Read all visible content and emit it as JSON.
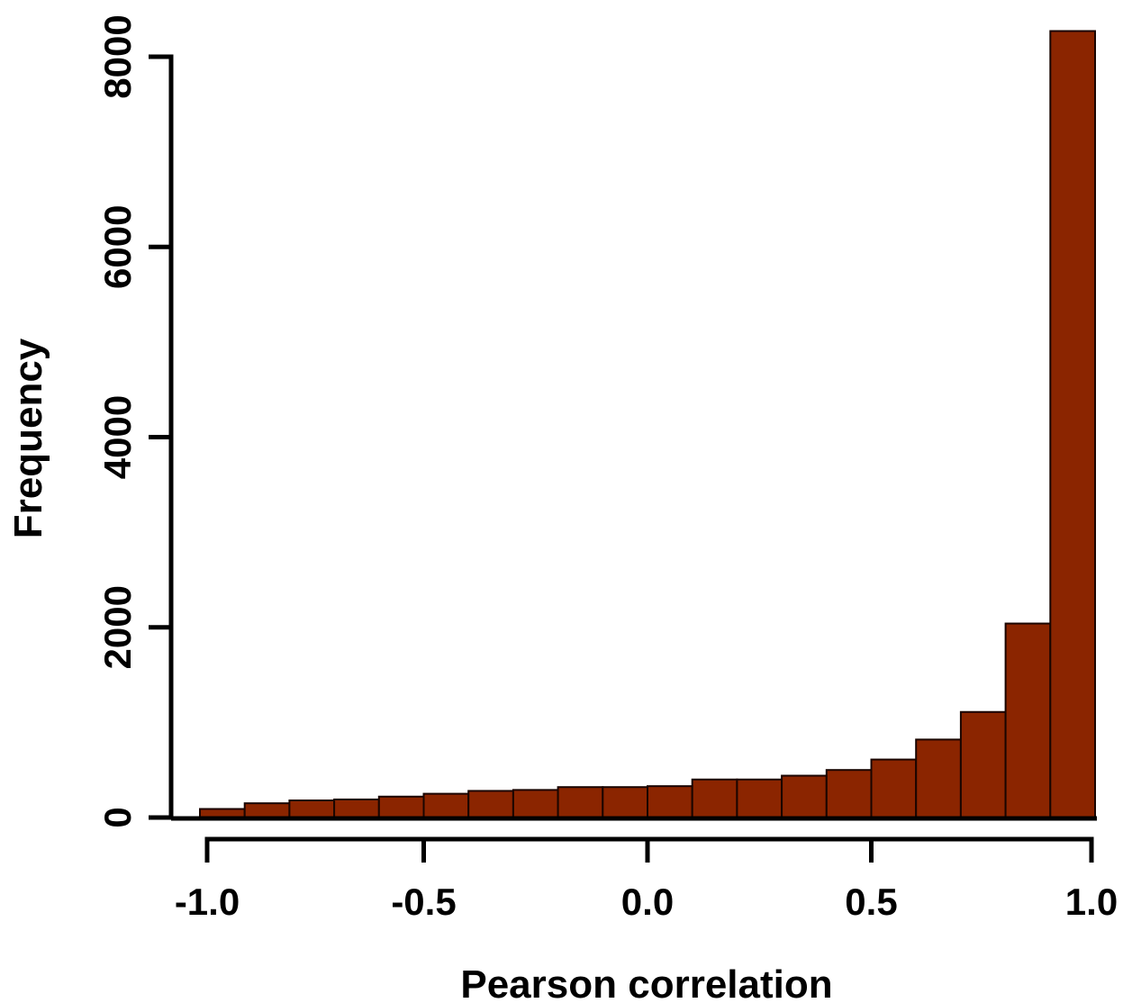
{
  "chart_data": {
    "type": "bar",
    "subtype": "histogram",
    "bin_edges": [
      -1.0,
      -0.9,
      -0.8,
      -0.7,
      -0.6,
      -0.5,
      -0.4,
      -0.3,
      -0.2,
      -0.1,
      0.0,
      0.1,
      0.2,
      0.3,
      0.4,
      0.5,
      0.6,
      0.7,
      0.8,
      0.9,
      1.0
    ],
    "values": [
      90,
      150,
      180,
      190,
      220,
      250,
      280,
      290,
      320,
      320,
      330,
      400,
      400,
      440,
      500,
      610,
      820,
      1110,
      2040,
      8270
    ],
    "title": "",
    "xlabel": "Pearson correlation",
    "ylabel": "Frequency",
    "xlim": [
      -1.0,
      1.0
    ],
    "ylim": [
      0,
      8000
    ],
    "x_ticks": [
      -1.0,
      -0.5,
      0.0,
      0.5,
      1.0
    ],
    "x_tick_labels": [
      "-1.0",
      "-0.5",
      "0.0",
      "0.5",
      "1.0"
    ],
    "y_ticks": [
      0,
      2000,
      4000,
      6000,
      8000
    ],
    "y_tick_labels": [
      "0",
      "2000",
      "4000",
      "6000",
      "8000"
    ],
    "grid": false,
    "legend": "none",
    "bar_color": "#8b2500",
    "bar_edge_color": "#1a0500"
  }
}
